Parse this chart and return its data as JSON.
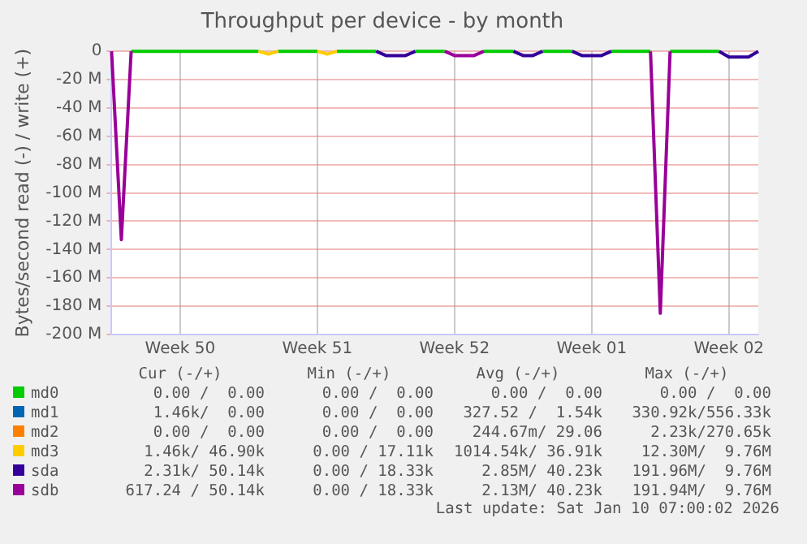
{
  "chart_data": {
    "type": "line",
    "title": "Throughput per device - by month",
    "ylabel": "Bytes/second read (-) / write (+)",
    "categories": [
      null,
      null,
      null,
      null,
      null,
      null,
      null,
      "Week 50",
      null,
      null,
      null,
      null,
      null,
      null,
      null,
      null,
      null,
      null,
      null,
      null,
      null,
      "Week 51",
      null,
      null,
      null,
      null,
      null,
      null,
      null,
      null,
      null,
      null,
      null,
      null,
      null,
      "Week 52",
      null,
      null,
      null,
      null,
      null,
      null,
      null,
      null,
      null,
      null,
      null,
      null,
      null,
      "Week 01",
      null,
      null,
      null,
      null,
      null,
      null,
      null,
      null,
      null,
      null,
      null,
      null,
      null,
      "Week 02",
      null,
      null,
      null
    ],
    "ylim": [
      -200,
      0
    ],
    "yticks": [
      {
        "value": -200,
        "label": "-200 M"
      },
      {
        "value": -180,
        "label": "-180 M"
      },
      {
        "value": -160,
        "label": "-160 M"
      },
      {
        "value": -140,
        "label": "-140 M"
      },
      {
        "value": -120,
        "label": "-120 M"
      },
      {
        "value": -100,
        "label": "-100 M"
      },
      {
        "value": -80,
        "label": "-80 M"
      },
      {
        "value": -60,
        "label": "-60 M"
      },
      {
        "value": -40,
        "label": "-40 M"
      },
      {
        "value": -20,
        "label": "-20 M"
      },
      0
    ],
    "grid": true,
    "legend": "bottom",
    "line_style": "solid",
    "marker": "none",
    "series": [
      {
        "name": "md0",
        "color": "#00cc00",
        "values": [
          null,
          null,
          0,
          0,
          0,
          0,
          0,
          0,
          0,
          0,
          0,
          0,
          0,
          0,
          0,
          0,
          null,
          0,
          0,
          0,
          0,
          0,
          null,
          0,
          0,
          0,
          0,
          0,
          null,
          null,
          null,
          0,
          0,
          0,
          0,
          null,
          null,
          null,
          0,
          0,
          0,
          0,
          null,
          null,
          0,
          0,
          0,
          0,
          null,
          null,
          null,
          0,
          0,
          0,
          0,
          0,
          null,
          0,
          0,
          0,
          0,
          0,
          0,
          null,
          null,
          null,
          null
        ]
      },
      {
        "name": "md1",
        "color": "#0066b3",
        "values": [
          null,
          null,
          null,
          null,
          null,
          null,
          null,
          null,
          null,
          null,
          null,
          null,
          null,
          null,
          null,
          null,
          null,
          null,
          null,
          null,
          null,
          null,
          null,
          null,
          null,
          null,
          null,
          null,
          null,
          null,
          null,
          null,
          null,
          null,
          null,
          null,
          null,
          null,
          null,
          null,
          null,
          null,
          null,
          null,
          null,
          null,
          null,
          null,
          null,
          null,
          null,
          null,
          null,
          null,
          null,
          null,
          null,
          null,
          null,
          null,
          null,
          null,
          null,
          null,
          null,
          null,
          null
        ]
      },
      {
        "name": "md2",
        "color": "#ff8000",
        "values": [
          null,
          null,
          null,
          null,
          null,
          null,
          null,
          null,
          null,
          null,
          null,
          null,
          null,
          null,
          null,
          null,
          null,
          null,
          null,
          null,
          null,
          null,
          null,
          null,
          null,
          null,
          null,
          null,
          null,
          null,
          null,
          null,
          null,
          null,
          null,
          null,
          null,
          null,
          null,
          null,
          null,
          null,
          null,
          null,
          null,
          null,
          null,
          null,
          null,
          null,
          null,
          null,
          null,
          null,
          null,
          null,
          null,
          null,
          null,
          null,
          null,
          null,
          null,
          null,
          null,
          null,
          null
        ]
      },
      {
        "name": "md3",
        "color": "#ffcc00",
        "values": [
          null,
          null,
          null,
          null,
          null,
          null,
          null,
          null,
          null,
          null,
          null,
          null,
          null,
          null,
          null,
          0,
          -2,
          0,
          null,
          null,
          null,
          0,
          -2,
          0,
          null,
          null,
          null,
          null,
          null,
          null,
          null,
          null,
          null,
          null,
          null,
          null,
          null,
          null,
          null,
          null,
          null,
          null,
          null,
          null,
          null,
          null,
          null,
          null,
          null,
          null,
          null,
          null,
          null,
          null,
          null,
          null,
          null,
          null,
          null,
          null,
          null,
          null,
          null,
          null,
          null,
          null,
          null
        ]
      },
      {
        "name": "sda",
        "color": "#330099",
        "values": [
          null,
          null,
          null,
          null,
          null,
          null,
          null,
          null,
          null,
          null,
          null,
          null,
          null,
          null,
          null,
          null,
          null,
          null,
          null,
          null,
          null,
          null,
          null,
          null,
          null,
          null,
          null,
          0,
          -3,
          -3,
          -3,
          0,
          null,
          null,
          null,
          null,
          null,
          null,
          null,
          null,
          null,
          0,
          -3,
          -3,
          0,
          null,
          null,
          0,
          -3,
          -3,
          -3,
          0,
          null,
          null,
          null,
          null,
          null,
          null,
          null,
          null,
          null,
          null,
          0,
          -4,
          -4,
          -4,
          0
        ]
      },
      {
        "name": "sdb",
        "color": "#990099",
        "values": [
          0,
          -133,
          0,
          null,
          null,
          null,
          null,
          null,
          null,
          null,
          null,
          null,
          null,
          null,
          null,
          null,
          null,
          null,
          null,
          null,
          null,
          null,
          null,
          null,
          null,
          null,
          null,
          null,
          null,
          null,
          null,
          null,
          null,
          null,
          0,
          -3,
          -3,
          -3,
          0,
          null,
          null,
          null,
          null,
          null,
          null,
          null,
          null,
          null,
          null,
          null,
          null,
          null,
          null,
          null,
          null,
          0,
          -185,
          0,
          null,
          null,
          null,
          null,
          null,
          null,
          null,
          null,
          null
        ]
      }
    ],
    "annotations": [
      "Cur (-/+)",
      "Min (-/+)",
      "Avg (-/+)",
      "Max (-/+)",
      "0.00 /  0.00",
      "0.00 /  0.00",
      "0.00 /  0.00",
      "0.00 /  0.00",
      "1.46k/  0.00",
      "0.00 /  0.00",
      "327.52 /  1.54k",
      "330.92k/556.33k",
      "0.00 /  0.00",
      "0.00 /  0.00",
      "244.67m/ 29.06",
      "2.23k/270.65k",
      "1.46k/ 46.90k",
      "0.00 / 17.11k",
      "1014.54k/ 36.91k",
      "12.30M/  9.76M",
      "2.31k/ 50.14k",
      "0.00 / 18.33k",
      "2.85M/ 40.23k",
      "191.96M/  9.76M",
      "617.24 / 50.14k",
      "0.00 / 18.33k",
      "2.13M/ 40.23k",
      "191.94M/  9.76M",
      "Last update: Sat Jan 10 07:00:02 2026"
    ]
  }
}
